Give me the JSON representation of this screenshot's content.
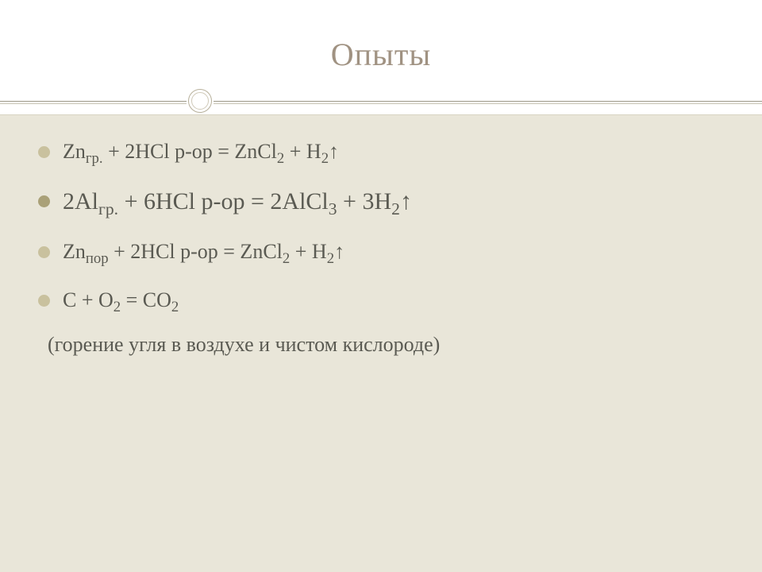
{
  "title": "Опыты",
  "colors": {
    "title_color": "#a09282",
    "content_bg": "#e9e6d9",
    "text_color": "#5a5a52",
    "bullet_lvl1": "#c9c19e",
    "bullet_lvl0": "#aaa178",
    "divider": "#9c9888"
  },
  "typography": {
    "title_fontsize": 40,
    "body_fontsize": 26,
    "emphasized_fontsize": 30,
    "font_family": "Georgia"
  },
  "items": [
    {
      "level": 1,
      "html": "Zn<sub>гр.</sub> + 2HCl р-ор = ZnCl<sub>2</sub> + H<sub>2</sub>↑"
    },
    {
      "level": 0,
      "html": "2Al<sub>гр.</sub> + 6HCl р-ор = 2AlCl<sub>3</sub> + 3H<sub>2</sub>↑"
    },
    {
      "level": 1,
      "html": "Zn<sub>пор</sub> + 2HCl р-ор = ZnCl<sub>2</sub> + H<sub>2</sub>↑"
    },
    {
      "level": 1,
      "html": "C + O<sub>2</sub> = CO<sub>2</sub>"
    }
  ],
  "note": "(горение угля в воздухе и чистом кислороде)"
}
